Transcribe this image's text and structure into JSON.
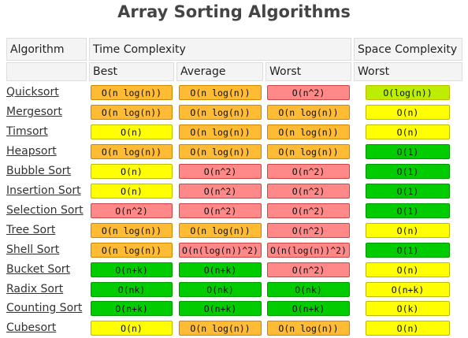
{
  "title": "Array Sorting Algorithms",
  "headers": {
    "algorithm": "Algorithm",
    "time_complexity": "Time Complexity",
    "space_complexity": "Space Complexity",
    "best": "Best",
    "average": "Average",
    "worst": "Worst",
    "space_worst": "Worst"
  },
  "colors": {
    "good": "#00cc00",
    "fair": "#ffff00",
    "mediocre": "#ffbb33",
    "bad": "#ff8888",
    "best_space": "#bbee00"
  },
  "rows": [
    {
      "name": "Quicksort",
      "best": {
        "text": "O(n log(n))",
        "rating": "mediocre"
      },
      "average": {
        "text": "O(n log(n))",
        "rating": "mediocre"
      },
      "worst": {
        "text": "O(n^2)",
        "rating": "bad"
      },
      "space": {
        "text": "O(log(n))",
        "rating": "best_space"
      }
    },
    {
      "name": "Mergesort",
      "best": {
        "text": "O(n log(n))",
        "rating": "mediocre"
      },
      "average": {
        "text": "O(n log(n))",
        "rating": "mediocre"
      },
      "worst": {
        "text": "O(n log(n))",
        "rating": "mediocre"
      },
      "space": {
        "text": "O(n)",
        "rating": "fair"
      }
    },
    {
      "name": "Timsort",
      "best": {
        "text": "O(n)",
        "rating": "fair"
      },
      "average": {
        "text": "O(n log(n))",
        "rating": "mediocre"
      },
      "worst": {
        "text": "O(n log(n))",
        "rating": "mediocre"
      },
      "space": {
        "text": "O(n)",
        "rating": "fair"
      }
    },
    {
      "name": "Heapsort",
      "best": {
        "text": "O(n log(n))",
        "rating": "mediocre"
      },
      "average": {
        "text": "O(n log(n))",
        "rating": "mediocre"
      },
      "worst": {
        "text": "O(n log(n))",
        "rating": "mediocre"
      },
      "space": {
        "text": "O(1)",
        "rating": "good"
      }
    },
    {
      "name": "Bubble Sort",
      "best": {
        "text": "O(n)",
        "rating": "fair"
      },
      "average": {
        "text": "O(n^2)",
        "rating": "bad"
      },
      "worst": {
        "text": "O(n^2)",
        "rating": "bad"
      },
      "space": {
        "text": "O(1)",
        "rating": "good"
      }
    },
    {
      "name": "Insertion Sort",
      "best": {
        "text": "O(n)",
        "rating": "fair"
      },
      "average": {
        "text": "O(n^2)",
        "rating": "bad"
      },
      "worst": {
        "text": "O(n^2)",
        "rating": "bad"
      },
      "space": {
        "text": "O(1)",
        "rating": "good"
      }
    },
    {
      "name": "Selection Sort",
      "best": {
        "text": "O(n^2)",
        "rating": "bad"
      },
      "average": {
        "text": "O(n^2)",
        "rating": "bad"
      },
      "worst": {
        "text": "O(n^2)",
        "rating": "bad"
      },
      "space": {
        "text": "O(1)",
        "rating": "good"
      }
    },
    {
      "name": "Tree Sort",
      "best": {
        "text": "O(n log(n))",
        "rating": "mediocre"
      },
      "average": {
        "text": "O(n log(n))",
        "rating": "mediocre"
      },
      "worst": {
        "text": "O(n^2)",
        "rating": "bad"
      },
      "space": {
        "text": "O(n)",
        "rating": "fair"
      }
    },
    {
      "name": "Shell Sort",
      "best": {
        "text": "O(n log(n))",
        "rating": "mediocre"
      },
      "average": {
        "text": "O(n(log(n))^2)",
        "rating": "bad"
      },
      "worst": {
        "text": "O(n(log(n))^2)",
        "rating": "bad"
      },
      "space": {
        "text": "O(1)",
        "rating": "good"
      }
    },
    {
      "name": "Bucket Sort",
      "best": {
        "text": "O(n+k)",
        "rating": "good"
      },
      "average": {
        "text": "O(n+k)",
        "rating": "good"
      },
      "worst": {
        "text": "O(n^2)",
        "rating": "bad"
      },
      "space": {
        "text": "O(n)",
        "rating": "fair"
      }
    },
    {
      "name": "Radix Sort",
      "best": {
        "text": "O(nk)",
        "rating": "good"
      },
      "average": {
        "text": "O(nk)",
        "rating": "good"
      },
      "worst": {
        "text": "O(nk)",
        "rating": "good"
      },
      "space": {
        "text": "O(n+k)",
        "rating": "fair"
      }
    },
    {
      "name": "Counting Sort",
      "best": {
        "text": "O(n+k)",
        "rating": "good"
      },
      "average": {
        "text": "O(n+k)",
        "rating": "good"
      },
      "worst": {
        "text": "O(n+k)",
        "rating": "good"
      },
      "space": {
        "text": "O(k)",
        "rating": "fair"
      }
    },
    {
      "name": "Cubesort",
      "best": {
        "text": "O(n)",
        "rating": "fair"
      },
      "average": {
        "text": "O(n log(n))",
        "rating": "mediocre"
      },
      "worst": {
        "text": "O(n log(n))",
        "rating": "mediocre"
      },
      "space": {
        "text": "O(n)",
        "rating": "fair"
      }
    }
  ]
}
